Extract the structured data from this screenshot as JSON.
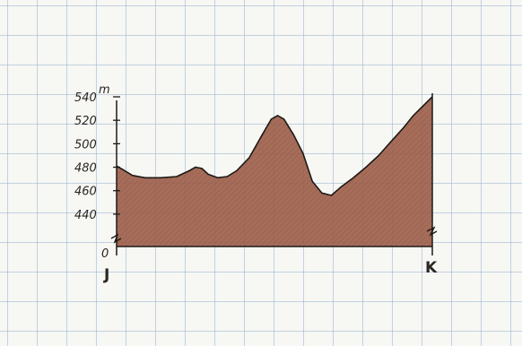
{
  "chart_data": {
    "type": "area",
    "title": "",
    "xlabel": "",
    "ylabel": "",
    "unit": "m",
    "x_end_labels": [
      "J",
      "K"
    ],
    "y_ticks": [
      {
        "label": "0",
        "value": 0
      },
      {
        "label": "440",
        "value": 440
      },
      {
        "label": "460",
        "value": 460
      },
      {
        "label": "480",
        "value": 480
      },
      {
        "label": "500",
        "value": 500
      },
      {
        "label": "520",
        "value": 520
      },
      {
        "label": "540",
        "value": 540
      }
    ],
    "axis_break": true,
    "ylim": [
      430,
      540
    ],
    "xlim": [
      0,
      1
    ],
    "grid": true,
    "series": [
      {
        "color": "#9b5a45",
        "x": [
          0.0,
          0.02,
          0.05,
          0.09,
          0.14,
          0.19,
          0.23,
          0.25,
          0.27,
          0.29,
          0.32,
          0.35,
          0.38,
          0.42,
          0.46,
          0.49,
          0.51,
          0.53,
          0.56,
          0.59,
          0.62,
          0.65,
          0.68,
          0.71,
          0.75,
          0.79,
          0.83,
          0.87,
          0.91,
          0.94,
          0.97,
          1.0
        ],
        "y": [
          481,
          478,
          473,
          471,
          471,
          472,
          477,
          480,
          479,
          474,
          471,
          472,
          477,
          488,
          507,
          521,
          524,
          521,
          508,
          492,
          468,
          458,
          456,
          463,
          471,
          480,
          490,
          502,
          514,
          524,
          532,
          540
        ]
      }
    ]
  }
}
